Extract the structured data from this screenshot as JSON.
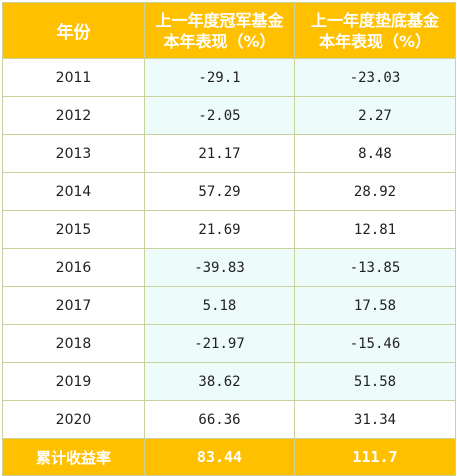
{
  "table": {
    "header": {
      "col0": "年份",
      "col1_line1": "上一年度冠军基金",
      "col1_line2": "本年表现（%）",
      "col2_line1": "上一年度垫底基金",
      "col2_line2": "本年表现（%）"
    },
    "rows": [
      {
        "year": "2011",
        "champion": "-29.1",
        "bottom": "-23.03",
        "highlight": true
      },
      {
        "year": "2012",
        "champion": "-2.05",
        "bottom": "2.27",
        "highlight": true
      },
      {
        "year": "2013",
        "champion": "21.17",
        "bottom": "8.48",
        "highlight": false
      },
      {
        "year": "2014",
        "champion": "57.29",
        "bottom": "28.92",
        "highlight": false
      },
      {
        "year": "2015",
        "champion": "21.69",
        "bottom": "12.81",
        "highlight": false
      },
      {
        "year": "2016",
        "champion": "-39.83",
        "bottom": "-13.85",
        "highlight": true
      },
      {
        "year": "2017",
        "champion": "5.18",
        "bottom": "17.58",
        "highlight": true
      },
      {
        "year": "2018",
        "champion": "-21.97",
        "bottom": "-15.46",
        "highlight": true
      },
      {
        "year": "2019",
        "champion": "38.62",
        "bottom": "51.58",
        "highlight": true
      },
      {
        "year": "2020",
        "champion": "66.36",
        "bottom": "31.34",
        "highlight": false
      }
    ],
    "footer": {
      "label": "累计收益率",
      "champion": "83.44",
      "bottom": "111.7"
    }
  },
  "colors": {
    "header_bg": "#ffc000",
    "header_text": "#ffffff",
    "highlight_bg": "#eefbfb",
    "grid": "#c9d29a"
  }
}
